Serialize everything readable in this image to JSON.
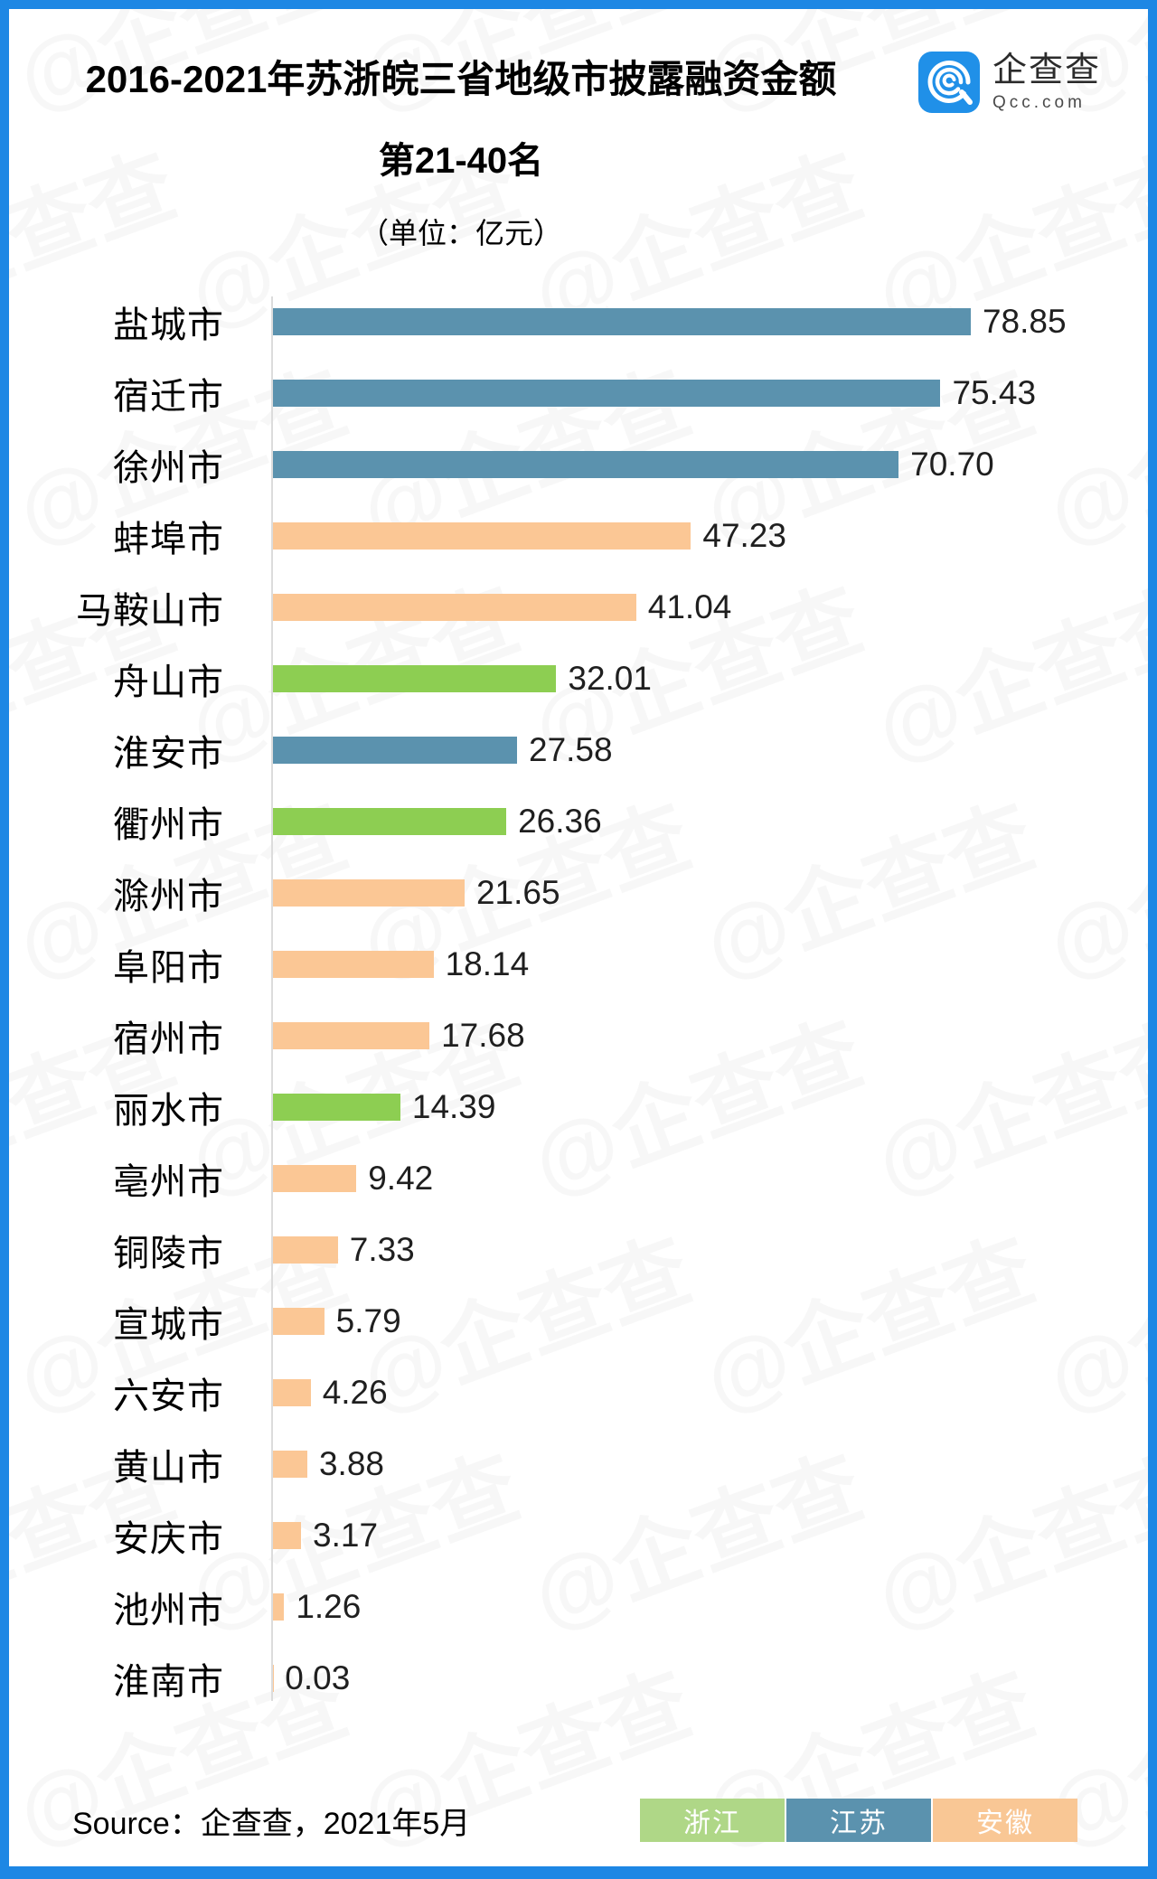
{
  "frame": {
    "border_color": "#1D87E4",
    "card_background": "#FFFFFF"
  },
  "header": {
    "title": "2016-2021年苏浙皖三省地级市披露融资金额",
    "subtitle": "第21-40名",
    "unit_label": "（单位：亿元）"
  },
  "logo": {
    "name": "企查查",
    "domain": "Qcc.com",
    "icon_color": "#2090E8"
  },
  "watermark": {
    "text": "@企查查"
  },
  "chart_data": {
    "type": "bar",
    "orientation": "horizontal",
    "title": "2016-2021年苏浙皖三省地级市披露融资金额 第21-40名",
    "unit": "亿元",
    "xlim": [
      0,
      80.6
    ],
    "grid": false,
    "categories": [
      "盐城市",
      "宿迁市",
      "徐州市",
      "蚌埠市",
      "马鞍山市",
      "舟山市",
      "淮安市",
      "衢州市",
      "滁州市",
      "阜阳市",
      "宿州市",
      "丽水市",
      "亳州市",
      "铜陵市",
      "宣城市",
      "六安市",
      "黄山市",
      "安庆市",
      "池州市",
      "淮南市"
    ],
    "values": [
      78.85,
      75.43,
      70.7,
      47.23,
      41.04,
      32.01,
      27.58,
      26.36,
      21.65,
      18.14,
      17.68,
      14.39,
      9.42,
      7.33,
      5.79,
      4.26,
      3.88,
      3.17,
      1.26,
      0.03
    ],
    "display_values": [
      "78.85",
      "75.43",
      "70.70",
      "47.23",
      "41.04",
      "32.01",
      "27.58",
      "26.36",
      "21.65",
      "18.14",
      "17.68",
      "14.39",
      "9.42",
      "7.33",
      "5.79",
      "4.26",
      "3.88",
      "3.17",
      "1.26",
      "0.03"
    ],
    "provinces": [
      "江苏",
      "江苏",
      "江苏",
      "安徽",
      "安徽",
      "浙江",
      "江苏",
      "浙江",
      "安徽",
      "安徽",
      "安徽",
      "浙江",
      "安徽",
      "安徽",
      "安徽",
      "安徽",
      "安徽",
      "安徽",
      "安徽",
      "安徽"
    ],
    "bar_colors": {
      "浙江": "#8DCE52",
      "江苏": "#5B92AE",
      "安徽": "#FBC795"
    },
    "legend_position": "bottom-right"
  },
  "legend": [
    {
      "key": "zhejiang",
      "label": "浙江",
      "color": "#AFD787"
    },
    {
      "key": "jiangsu",
      "label": "江苏",
      "color": "#5B92AE"
    },
    {
      "key": "anhui",
      "label": "安徽",
      "color": "#F9C795"
    }
  ],
  "footer": {
    "source": "Source：企查查，2021年5月"
  }
}
